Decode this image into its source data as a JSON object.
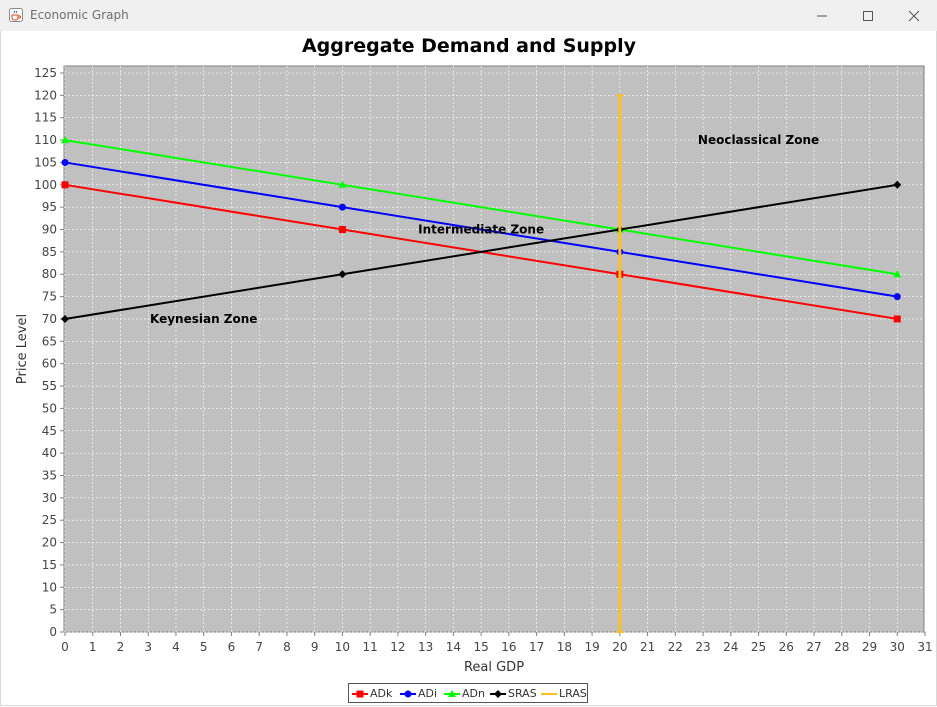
{
  "window": {
    "title": "Economic Graph",
    "icon": "java-coffee-cup-icon",
    "controls": [
      "minimize-icon",
      "maximize-icon",
      "close-icon"
    ]
  },
  "chart_data": {
    "type": "line",
    "title": "Aggregate Demand and Supply",
    "xlabel": "Real GDP",
    "ylabel": "Price Level",
    "xlim": [
      0,
      31
    ],
    "ylim": [
      0,
      125
    ],
    "x_ticks": [
      0,
      1,
      2,
      3,
      4,
      5,
      6,
      7,
      8,
      9,
      10,
      11,
      12,
      13,
      14,
      15,
      16,
      17,
      18,
      19,
      20,
      21,
      22,
      23,
      24,
      25,
      26,
      27,
      28,
      29,
      30,
      31
    ],
    "y_ticks": [
      0,
      5,
      10,
      15,
      20,
      25,
      30,
      35,
      40,
      45,
      50,
      55,
      60,
      65,
      70,
      75,
      80,
      85,
      90,
      95,
      100,
      105,
      110,
      115,
      120,
      125
    ],
    "grid": true,
    "background": "#c0c0c0",
    "legend_position": "bottom-center",
    "series": [
      {
        "name": "ADk",
        "color": "#ff0000",
        "marker": "square",
        "x": [
          0,
          10,
          20,
          30
        ],
        "y": [
          100,
          90,
          80,
          70
        ]
      },
      {
        "name": "ADi",
        "color": "#0000ff",
        "marker": "circle",
        "x": [
          0,
          10,
          20,
          30
        ],
        "y": [
          105,
          95,
          85,
          75
        ]
      },
      {
        "name": "ADn",
        "color": "#00ff00",
        "marker": "triangle",
        "x": [
          0,
          10,
          20,
          30
        ],
        "y": [
          110,
          100,
          90,
          80
        ]
      },
      {
        "name": "SRAS",
        "color": "#000000",
        "marker": "diamond",
        "x": [
          0,
          10,
          20,
          30
        ],
        "y": [
          70,
          80,
          90,
          100
        ]
      },
      {
        "name": "LRAS",
        "color": "#ffc020",
        "marker": "dash",
        "x": [
          20,
          20
        ],
        "y": [
          0,
          120
        ]
      }
    ],
    "annotations": [
      {
        "text": "Keynesian Zone",
        "x": 5,
        "y": 70
      },
      {
        "text": "Intermediate Zone",
        "x": 15,
        "y": 90
      },
      {
        "text": "Neoclassical Zone",
        "x": 25,
        "y": 110
      }
    ]
  }
}
